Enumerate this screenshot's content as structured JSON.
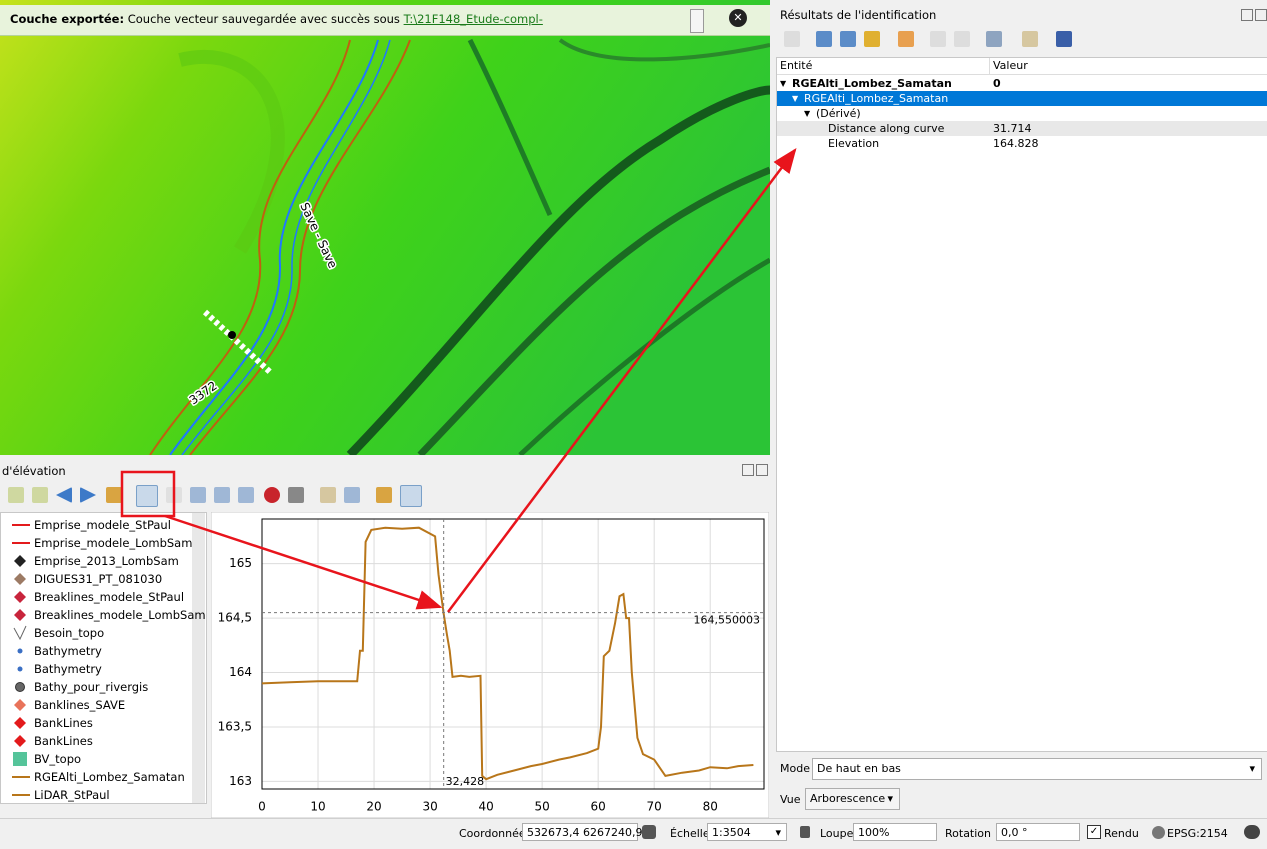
{
  "message_bar": {
    "title": "Couche exportée:",
    "text": "Couche vecteur sauvegardée avec succès sous",
    "link": "T:\\21F148_Etude-compl-"
  },
  "map": {
    "labels": [
      "Save - Save",
      "3372"
    ]
  },
  "elevation_panel": {
    "title": "d'élévation",
    "layers": [
      {
        "name": "Emprise_modele_StPaul",
        "symbol": "line",
        "color": "#e31a1c"
      },
      {
        "name": "Emprise_modele_LombSam",
        "symbol": "line",
        "color": "#e31a1c"
      },
      {
        "name": "Emprise_2013_LombSam",
        "symbol": "diamond",
        "color": "#222222"
      },
      {
        "name": "DIGUES31_PT_081030",
        "symbol": "diamond",
        "color": "#9c7a64"
      },
      {
        "name": "Breaklines_modele_StPaul",
        "symbol": "diamond",
        "color": "#c8243c"
      },
      {
        "name": "Breaklines_modele_LombSam",
        "symbol": "diamond",
        "color": "#c8243c"
      },
      {
        "name": "Besoin_topo",
        "symbol": "wedge",
        "color": "#666666"
      },
      {
        "name": "Bathymetry",
        "symbol": "point",
        "color": "#3a6fc4"
      },
      {
        "name": "Bathymetry",
        "symbol": "point",
        "color": "#3a6fc4"
      },
      {
        "name": "Bathy_pour_rivergis",
        "symbol": "circle",
        "color": "#666666"
      },
      {
        "name": "Banklines_SAVE",
        "symbol": "diamond",
        "color": "#e8735a"
      },
      {
        "name": "BankLines",
        "symbol": "diamond",
        "color": "#e31a1c"
      },
      {
        "name": "BankLines",
        "symbol": "diamond",
        "color": "#e31a1c"
      },
      {
        "name": "BV_topo",
        "symbol": "square",
        "color": "#55c49a"
      },
      {
        "name": "RGEAlti_Lombez_Samatan",
        "symbol": "line",
        "color": "#b8761a"
      },
      {
        "name": "LiDAR_StPaul",
        "symbol": "line",
        "color": "#b8761a"
      }
    ]
  },
  "chart_data": {
    "type": "line",
    "color": "#b8761a",
    "x": [
      0,
      5,
      10,
      17,
      17.5,
      18,
      18.5,
      19.5,
      22,
      25,
      28,
      30.9,
      31.5,
      32.4,
      33,
      33.5,
      34,
      35.5,
      37,
      39,
      39.3,
      40,
      42,
      45,
      48,
      50,
      53,
      55,
      58,
      60,
      60.5,
      61,
      62,
      63,
      63.8,
      64.5,
      65,
      65.5,
      66,
      67,
      68,
      70,
      72,
      75,
      78,
      80,
      83,
      85,
      87.7
    ],
    "values": [
      163.9,
      163.91,
      163.92,
      163.92,
      164.2,
      164.2,
      165.2,
      165.31,
      165.33,
      165.32,
      165.33,
      165.25,
      164.9,
      164.55,
      164.35,
      164.2,
      163.96,
      163.97,
      163.96,
      163.97,
      163.05,
      163.02,
      163.06,
      163.1,
      163.14,
      163.16,
      163.2,
      163.22,
      163.26,
      163.3,
      163.5,
      164.15,
      164.2,
      164.45,
      164.7,
      164.72,
      164.5,
      164.5,
      164.0,
      163.4,
      163.25,
      163.2,
      163.05,
      163.08,
      163.1,
      163.13,
      163.12,
      163.14,
      163.15
    ],
    "xlim": [
      0,
      89.6
    ],
    "ylim": [
      162.93,
      165.41
    ],
    "xticks": [
      0,
      10,
      20,
      30,
      40,
      50,
      60,
      70,
      80
    ],
    "yticks": [
      163,
      {
        "value": 163.5,
        "label": "163,5"
      },
      164,
      {
        "value": 164.5,
        "label": "164,5"
      },
      165
    ],
    "grid": true,
    "crosshair": {
      "x": {
        "value": 32.428,
        "label": "32,428"
      },
      "y": {
        "value": 164.550003,
        "label": "164,550003"
      }
    }
  },
  "identify_panel": {
    "title": "Résultats de l'identification",
    "columns": [
      "Entité",
      "Valeur"
    ],
    "rows": [
      {
        "entity": "RGEAlti_Lombez_Samatan",
        "value": 0,
        "level": 0,
        "bold": true
      },
      {
        "entity": "RGEAlti_Lombez_Samatan",
        "level": 1,
        "selected": true
      },
      {
        "entity": "(Dérivé)",
        "level": 2
      },
      {
        "entity": "Distance along curve",
        "value": 31.714,
        "level": 3,
        "shaded": true
      },
      {
        "entity": "Elevation",
        "value": 164.828,
        "level": 3
      }
    ]
  },
  "mode": {
    "label": "Mode",
    "value": "De haut en bas"
  },
  "view": {
    "label": "Vue",
    "value": "Arborescence"
  },
  "status_bar": {
    "coord_label": "Coordonnée",
    "coord": "532673,4 6267240,9",
    "scale_label": "Échelle",
    "scale": "1:3504",
    "magnifier_label": "Loupe",
    "magnifier": "100%",
    "rotation_label": "Rotation",
    "rotation": "0,0 °",
    "render": "Rendu",
    "crs": "EPSG:2154"
  }
}
